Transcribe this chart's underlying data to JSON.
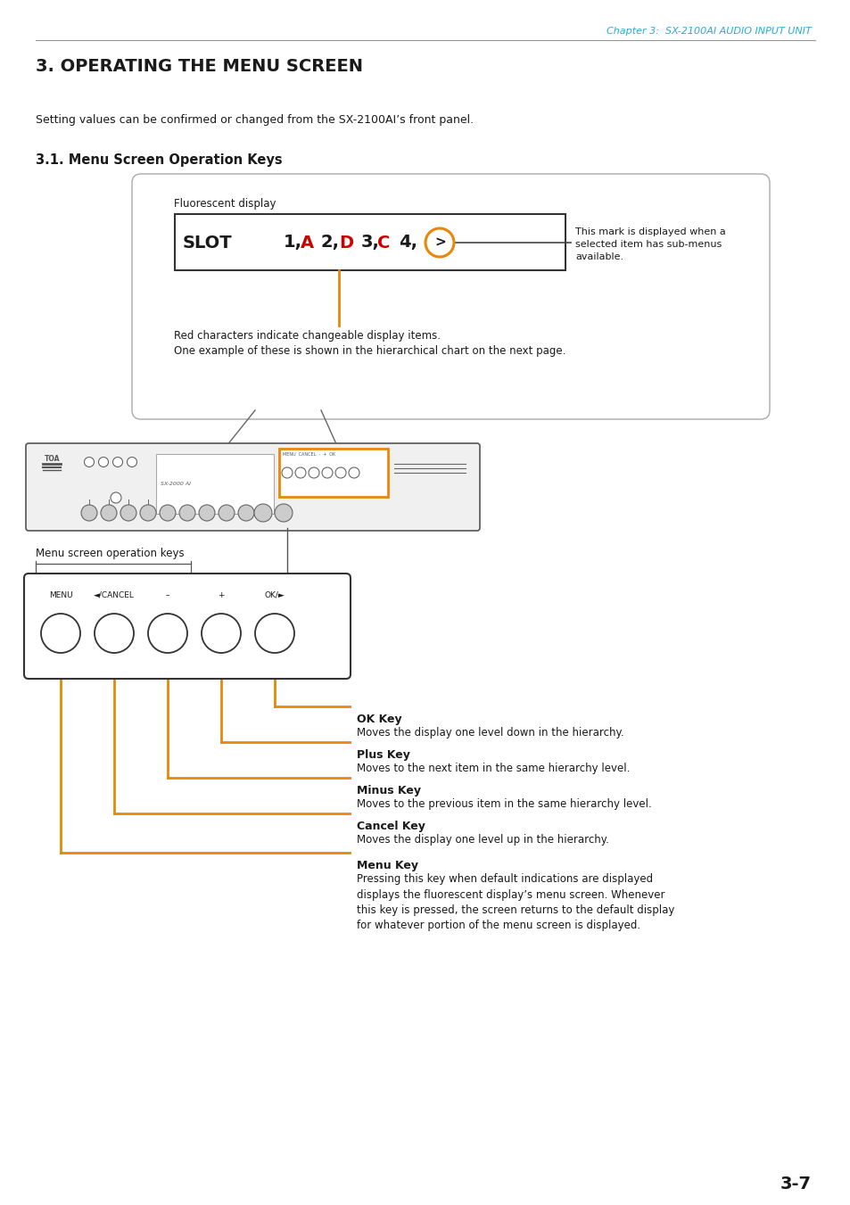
{
  "page_header": "Chapter 3:  SX-2100AI AUDIO INPUT UNIT",
  "main_title": "3. OPERATING THE MENU SCREEN",
  "intro_text": "Setting values can be confirmed or changed from the SX-2100AI’s front panel.",
  "section_title": "3.1. Menu Screen Operation Keys",
  "display_label": "Fluorescent display",
  "display_arrow_label": "This mark is displayed when a\nselected item has sub-menus\navailable.",
  "red_chars_note_line1": "Red characters indicate changeable display items.",
  "red_chars_note_line2": "One example of these is shown in the hierarchical chart on the next page.",
  "menu_keys_label": "Menu screen operation keys",
  "key_labels": [
    "MENU",
    "◄/CANCEL",
    "–",
    "+",
    "OK/►"
  ],
  "key_descriptions": [
    {
      "title": "OK Key",
      "desc": "Moves the display one level down in the hierarchy."
    },
    {
      "title": "Plus Key",
      "desc": "Moves to the next item in the same hierarchy level."
    },
    {
      "title": "Minus Key",
      "desc": "Moves to the previous item in the same hierarchy level."
    },
    {
      "title": "Cancel Key",
      "desc": "Moves the display one level up in the hierarchy."
    },
    {
      "title": "Menu Key",
      "desc": "Pressing this key when default indications are displayed\ndisplays the fluorescent display’s menu screen. Whenever\nthis key is pressed, the screen returns to the default display\nfor whatever portion of the menu screen is displayed."
    }
  ],
  "page_number": "3-7",
  "orange_color": "#E8870A",
  "red_color": "#CC0000",
  "cyan_color": "#29ABD4",
  "dark_color": "#1a1a1a",
  "bg_color": "#FFFFFF"
}
